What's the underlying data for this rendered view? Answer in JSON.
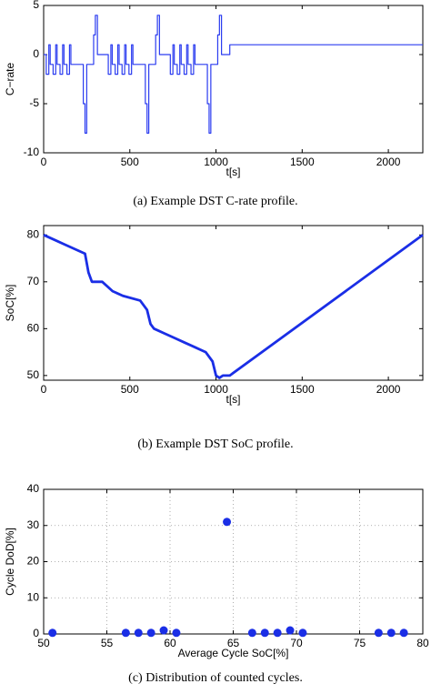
{
  "chart_data": [
    {
      "type": "line",
      "ylabel": "C−rate",
      "xlabel": "t[s]",
      "caption": "(a) Example DST C-rate profile.",
      "color": "#2b3cf0",
      "grid": false,
      "xlim": [
        0,
        2200
      ],
      "xticks": [
        0,
        500,
        1000,
        1500,
        2000
      ],
      "ylim": [
        -10,
        5
      ],
      "yticks": [
        -10,
        -5,
        0,
        5
      ],
      "x": [
        0,
        15,
        15,
        30,
        30,
        38,
        38,
        55,
        55,
        70,
        70,
        78,
        78,
        95,
        95,
        110,
        110,
        118,
        118,
        135,
        135,
        150,
        150,
        158,
        158,
        230,
        230,
        240,
        240,
        250,
        250,
        290,
        290,
        300,
        300,
        312,
        312,
        360,
        375,
        375,
        390,
        390,
        398,
        398,
        415,
        415,
        430,
        430,
        438,
        438,
        455,
        455,
        470,
        470,
        478,
        478,
        495,
        495,
        510,
        510,
        518,
        518,
        590,
        590,
        600,
        600,
        610,
        610,
        650,
        650,
        660,
        660,
        672,
        672,
        720,
        735,
        735,
        750,
        750,
        758,
        758,
        775,
        775,
        790,
        790,
        798,
        798,
        815,
        815,
        830,
        830,
        838,
        838,
        855,
        855,
        870,
        870,
        878,
        878,
        950,
        950,
        960,
        960,
        970,
        970,
        1010,
        1010,
        1020,
        1020,
        1032,
        1032,
        1080,
        1080,
        2200
      ],
      "values": [
        0,
        0,
        -2,
        -2,
        1,
        1,
        -1,
        -1,
        -2,
        -2,
        1,
        1,
        -1,
        -1,
        -2,
        -2,
        1,
        1,
        -1,
        -1,
        -2,
        -2,
        1,
        1,
        -1,
        -1,
        -5,
        -5,
        -8,
        -8,
        -1,
        -1,
        2,
        2,
        4,
        4,
        0,
        0,
        0,
        -2,
        -2,
        1,
        1,
        -1,
        -1,
        -2,
        -2,
        1,
        1,
        -1,
        -1,
        -2,
        -2,
        1,
        1,
        -1,
        -1,
        -2,
        -2,
        1,
        1,
        -1,
        -1,
        -5,
        -5,
        -8,
        -8,
        -1,
        -1,
        2,
        2,
        4,
        4,
        0,
        0,
        0,
        -2,
        -2,
        1,
        1,
        -1,
        -1,
        -2,
        -2,
        1,
        1,
        -1,
        -1,
        -2,
        -2,
        1,
        1,
        -1,
        -1,
        -2,
        -2,
        1,
        1,
        -1,
        -1,
        -5,
        -5,
        -8,
        -8,
        -1,
        -1,
        2,
        2,
        4,
        4,
        0,
        0,
        1,
        1
      ]
    },
    {
      "type": "line",
      "ylabel": "SoC[%]",
      "xlabel": "t[s]",
      "caption": "(b) Example DST SoC profile.",
      "color": "#1a2ee6",
      "grid": false,
      "xlim": [
        0,
        2200
      ],
      "xticks": [
        0,
        500,
        1000,
        1500,
        2000
      ],
      "ylim": [
        49,
        82
      ],
      "yticks": [
        50,
        60,
        70,
        80
      ],
      "x": [
        0,
        60,
        120,
        180,
        240,
        260,
        280,
        340,
        400,
        460,
        560,
        600,
        620,
        640,
        700,
        760,
        820,
        880,
        940,
        980,
        1000,
        1020,
        1040,
        1080,
        2200
      ],
      "values": [
        80,
        79,
        78,
        77,
        76,
        72,
        70,
        70,
        68,
        67,
        66,
        64,
        61,
        60,
        59,
        58,
        57,
        56,
        55,
        53,
        50,
        49.5,
        50,
        50,
        80
      ]
    },
    {
      "type": "scatter",
      "ylabel": "Cycle DoD[%]",
      "xlabel": "Average Cycle SoC[%]",
      "caption": "(c) Distribution of counted cycles.",
      "color": "#1a2ee6",
      "grid": true,
      "xlim": [
        50,
        80
      ],
      "xticks": [
        50,
        55,
        60,
        65,
        70,
        75,
        80
      ],
      "ylim": [
        0,
        40
      ],
      "yticks": [
        0,
        10,
        20,
        30,
        40
      ],
      "x": [
        50.7,
        56.5,
        57.5,
        58.5,
        59.5,
        60.5,
        64.5,
        66.5,
        67.5,
        68.5,
        69.5,
        70.5,
        76.5,
        77.5,
        78.5
      ],
      "values": [
        0.3,
        0.3,
        0.3,
        0.3,
        1,
        0.3,
        31,
        0.3,
        0.3,
        0.3,
        1,
        0.3,
        0.3,
        0.3,
        0.3
      ]
    }
  ]
}
